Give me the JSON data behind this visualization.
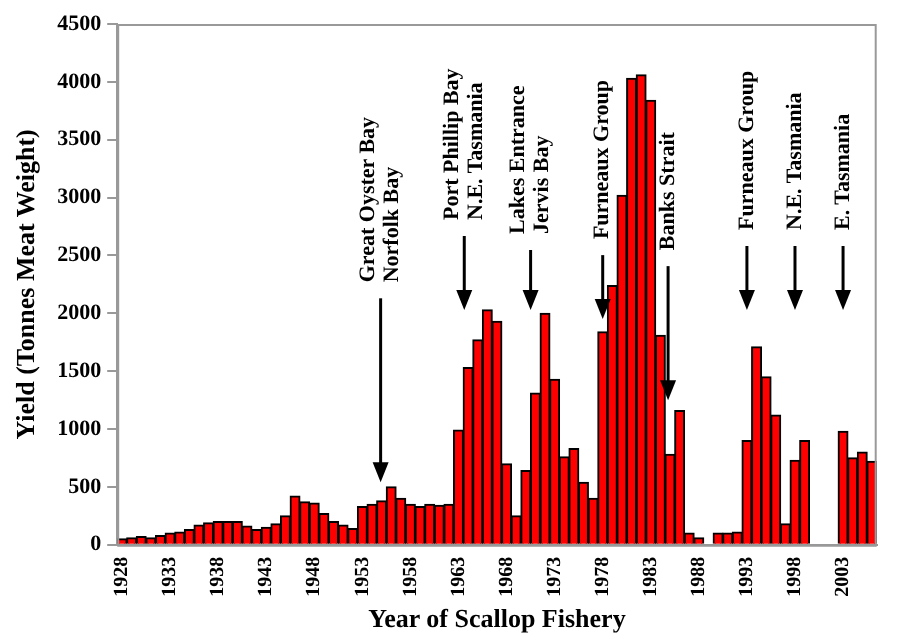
{
  "chart_data": {
    "type": "bar",
    "xlabel": "Year of Scallop Fishery",
    "ylabel": "Yield (Tonnes Meat Weight)",
    "categories": [
      "1928",
      null,
      null,
      null,
      null,
      "1933",
      null,
      null,
      null,
      null,
      "1938",
      null,
      null,
      null,
      null,
      "1943",
      null,
      null,
      null,
      null,
      "1948",
      null,
      null,
      null,
      null,
      "1953",
      null,
      null,
      null,
      null,
      "1958",
      null,
      null,
      null,
      null,
      "1963",
      null,
      null,
      null,
      null,
      "1968",
      null,
      null,
      null,
      null,
      "1973",
      null,
      null,
      null,
      null,
      "1978",
      null,
      null,
      null,
      null,
      "1983",
      null,
      null,
      null,
      null,
      "1988",
      null,
      null,
      null,
      null,
      "1993",
      null,
      null,
      null,
      null,
      "1998",
      null,
      null,
      null,
      null,
      "2003",
      null,
      null,
      null
    ],
    "values": [
      50,
      60,
      70,
      60,
      80,
      100,
      110,
      130,
      170,
      190,
      200,
      200,
      200,
      160,
      130,
      150,
      180,
      250,
      420,
      370,
      360,
      270,
      200,
      170,
      140,
      330,
      350,
      380,
      500,
      400,
      350,
      330,
      350,
      340,
      350,
      990,
      1530,
      1770,
      2030,
      1930,
      700,
      250,
      640,
      1310,
      2000,
      1430,
      760,
      830,
      540,
      400,
      1840,
      2240,
      3020,
      4030,
      4060,
      3840,
      1810,
      780,
      1160,
      100,
      60,
      0,
      100,
      100,
      110,
      900,
      1710,
      1450,
      1120,
      180,
      730,
      900,
      null,
      null,
      null,
      980,
      750,
      800,
      720
    ],
    "color": "#ff0000",
    "ylim": [
      0,
      4500
    ],
    "yticks": [
      0,
      500,
      1000,
      1500,
      2000,
      2500,
      3000,
      3500,
      4000,
      4500
    ],
    "grid": false,
    "legend": false,
    "annotations": [
      {
        "text": "Great Oyster Bay\nNorfolk Bay",
        "y": 540
      },
      "Port Phillip Bay\nN.E. Tasmania",
      "Lakes Entrance\nJervis Bay",
      {
        "text": "Furneaux Group",
        "x": "1978",
        "y": 1950
      },
      {
        "text": "Banks Strait",
        "y": 1250
      },
      "Furneaux Group",
      "N.E. Tasmania",
      "E. Tasmania"
    ]
  }
}
